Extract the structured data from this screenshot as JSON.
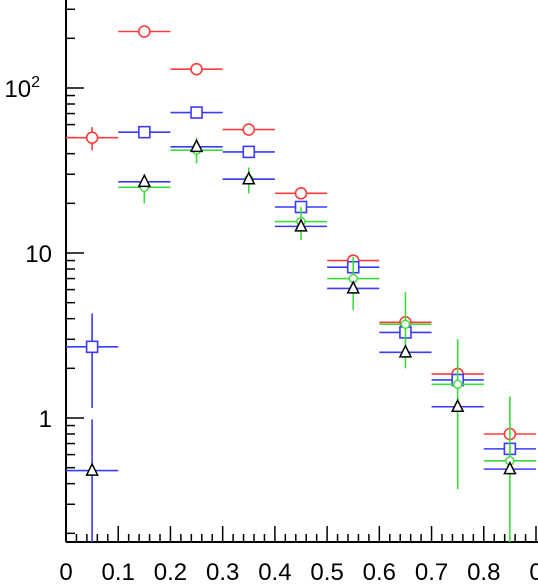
{
  "chart_data": {
    "type": "scatter",
    "title": "",
    "xlabel": "",
    "ylabel": "",
    "xlim": [
      0,
      0.9
    ],
    "ylim": [
      0.15,
      600
    ],
    "yscale": "log",
    "grid": false,
    "x_tick_labels": [
      "0",
      "0.1",
      "0.2",
      "0.3",
      "0.4",
      "0.5",
      "0.6",
      "0.7",
      "0.8",
      "0"
    ],
    "y_tick_labels": [
      {
        "value": 1,
        "base": "1",
        "exp": ""
      },
      {
        "value": 10,
        "base": "10",
        "exp": ""
      },
      {
        "value": 100,
        "base": "10",
        "exp": "2"
      }
    ],
    "series": [
      {
        "marker": "circle",
        "color": "#ff3b3b",
        "points": [
          {
            "x": 0.05,
            "y": 50,
            "xerr": 0.05,
            "ylo": 42,
            "yhi": 58
          },
          {
            "x": 0.15,
            "y": 220,
            "xerr": 0.05,
            "ylo": 220,
            "yhi": 220
          },
          {
            "x": 0.25,
            "y": 130,
            "xerr": 0.05,
            "ylo": 130,
            "yhi": 130
          },
          {
            "x": 0.35,
            "y": 56,
            "xerr": 0.05,
            "ylo": 56,
            "yhi": 56
          },
          {
            "x": 0.45,
            "y": 23,
            "xerr": 0.05,
            "ylo": 23,
            "yhi": 23
          },
          {
            "x": 0.55,
            "y": 9,
            "xerr": 0.05,
            "ylo": 9,
            "yhi": 9
          },
          {
            "x": 0.65,
            "y": 3.8,
            "xerr": 0.05,
            "ylo": 3.8,
            "yhi": 3.8
          },
          {
            "x": 0.75,
            "y": 1.85,
            "xerr": 0.05,
            "ylo": 1.85,
            "yhi": 1.85
          },
          {
            "x": 0.85,
            "y": 0.8,
            "xerr": 0.05,
            "ylo": 0.8,
            "yhi": 0.8
          }
        ]
      },
      {
        "marker": "square",
        "color": "#3b3bff",
        "points": [
          {
            "x": 0.05,
            "y": 2.7,
            "xerr": 0.05,
            "ylo": 1.15,
            "yhi": 4.3
          },
          {
            "x": 0.15,
            "y": 54,
            "xerr": 0.05,
            "ylo": 54,
            "yhi": 54
          },
          {
            "x": 0.25,
            "y": 71,
            "xerr": 0.05,
            "ylo": 71,
            "yhi": 71
          },
          {
            "x": 0.35,
            "y": 41,
            "xerr": 0.05,
            "ylo": 41,
            "yhi": 41
          },
          {
            "x": 0.45,
            "y": 19,
            "xerr": 0.05,
            "ylo": 19,
            "yhi": 19
          },
          {
            "x": 0.55,
            "y": 8.2,
            "xerr": 0.05,
            "ylo": 8.2,
            "yhi": 8.2
          },
          {
            "x": 0.65,
            "y": 3.3,
            "xerr": 0.05,
            "ylo": 3.3,
            "yhi": 3.3
          },
          {
            "x": 0.75,
            "y": 1.7,
            "xerr": 0.05,
            "ylo": 1.7,
            "yhi": 1.7
          },
          {
            "x": 0.85,
            "y": 0.65,
            "xerr": 0.05,
            "ylo": 0.65,
            "yhi": 0.65
          }
        ]
      },
      {
        "marker": "circle-small",
        "color": "#3bdc3b",
        "points": [
          {
            "x": 0.15,
            "y": 25,
            "xerr": 0.05,
            "ylo": 20,
            "yhi": 30
          },
          {
            "x": 0.25,
            "y": 42,
            "xerr": 0.05,
            "ylo": 35,
            "yhi": 50
          },
          {
            "x": 0.35,
            "y": 28,
            "xerr": 0.05,
            "ylo": 23,
            "yhi": 33
          },
          {
            "x": 0.45,
            "y": 15.5,
            "xerr": 0.05,
            "ylo": 12,
            "yhi": 19
          },
          {
            "x": 0.55,
            "y": 7,
            "xerr": 0.05,
            "ylo": 4.5,
            "yhi": 9.5
          },
          {
            "x": 0.65,
            "y": 3.7,
            "xerr": 0.05,
            "ylo": 2.0,
            "yhi": 5.8
          },
          {
            "x": 0.75,
            "y": 1.6,
            "xerr": 0.05,
            "ylo": 0.37,
            "yhi": 3.0
          },
          {
            "x": 0.85,
            "y": 0.55,
            "xerr": 0.05,
            "ylo": 0.15,
            "yhi": 1.35
          }
        ]
      },
      {
        "marker": "triangle",
        "color": "#000000",
        "hcolor": "#3b3bff",
        "points": [
          {
            "x": 0.05,
            "y": 0.48,
            "xerr": 0.05,
            "ylo": 0.15,
            "yhi": 0.98
          },
          {
            "x": 0.15,
            "y": 27,
            "xerr": 0.05,
            "ylo": 27,
            "yhi": 27
          },
          {
            "x": 0.25,
            "y": 44,
            "xerr": 0.05,
            "ylo": 44,
            "yhi": 44
          },
          {
            "x": 0.35,
            "y": 28,
            "xerr": 0.05,
            "ylo": 28,
            "yhi": 28
          },
          {
            "x": 0.45,
            "y": 14.5,
            "xerr": 0.05,
            "ylo": 14.5,
            "yhi": 14.5
          },
          {
            "x": 0.55,
            "y": 6.1,
            "xerr": 0.05,
            "ylo": 6.1,
            "yhi": 6.1
          },
          {
            "x": 0.65,
            "y": 2.5,
            "xerr": 0.05,
            "ylo": 2.5,
            "yhi": 2.5
          },
          {
            "x": 0.75,
            "y": 1.17,
            "xerr": 0.05,
            "ylo": 1.17,
            "yhi": 1.17
          },
          {
            "x": 0.85,
            "y": 0.49,
            "xerr": 0.05,
            "ylo": 0.49,
            "yhi": 0.49
          }
        ]
      }
    ]
  }
}
